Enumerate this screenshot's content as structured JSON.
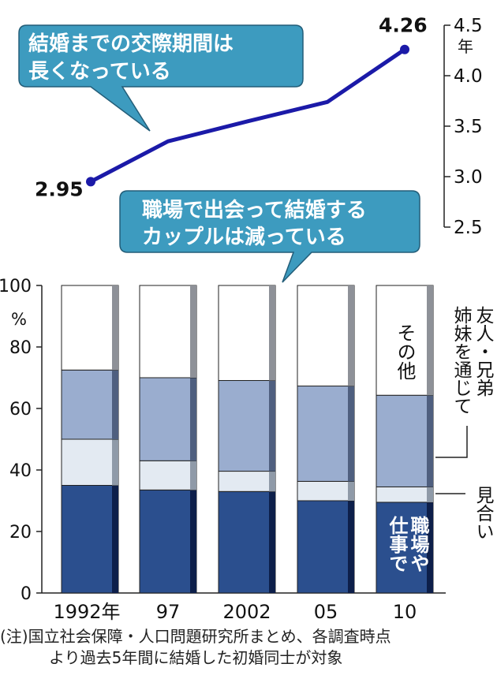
{
  "chart_data": [
    {
      "type": "line",
      "x": [
        "1992",
        "97",
        "2002",
        "05",
        "10"
      ],
      "series": [
        {
          "values": [
            2.95,
            3.35,
            3.55,
            3.74,
            4.26
          ]
        }
      ],
      "ylim": [
        2.5,
        4.5
      ],
      "yticks": [
        "2.5",
        "3.0",
        "3.5",
        "4.0",
        "4.5"
      ],
      "yunit": "年",
      "point_labels": [
        "2.95",
        "4.26"
      ],
      "callout": [
        "結婚までの交際期間は",
        "長くなっている"
      ],
      "color": "#1b1aa8"
    },
    {
      "type": "bar",
      "stacked": true,
      "categories": [
        "1992年",
        "97",
        "2002",
        "05",
        "10"
      ],
      "ylim": [
        0,
        100
      ],
      "yticks": [
        "0",
        "20",
        "40",
        "60",
        "80",
        "100"
      ],
      "yunit": "%",
      "series": [
        {
          "values": [
            35.0,
            33.5,
            33.0,
            30.0,
            29.5
          ],
          "color": "#2b4f8e"
        },
        {
          "values": [
            15.0,
            9.5,
            6.6,
            6.3,
            5.0
          ],
          "color": "#e3eaf2"
        },
        {
          "values": [
            22.5,
            27.0,
            29.5,
            31.0,
            29.8
          ],
          "color": "#9aadcf"
        },
        {
          "values": [
            27.5,
            30.0,
            30.9,
            32.7,
            35.7
          ],
          "color": "#ffffff"
        }
      ],
      "legend_labels": {
        "other": "その他",
        "friends": [
          "友人・兄弟",
          "姉妹を通じて"
        ],
        "miai": "見合い",
        "work": [
          "職場や",
          "仕事で"
        ]
      },
      "callout": [
        "職場で出会って結婚する",
        "カップルは減っている"
      ]
    }
  ],
  "note": {
    "line1": "(注)国立社会保障・人口問題研究所まとめ、各調査時点",
    "line2": "より過去5年間に結婚した初婚同士が対象"
  }
}
